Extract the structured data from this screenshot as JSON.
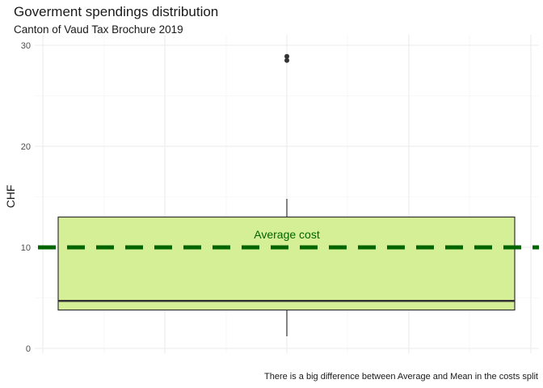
{
  "chart_data": {
    "type": "boxplot",
    "title": "Goverment spendings distribution",
    "subtitle": "Canton of Vaud Tax Brochure 2019",
    "caption": "There is a big difference between Average and Mean in the costs split",
    "xlabel": "",
    "ylabel": "CHF",
    "ylim": [
      0,
      30
    ],
    "yticks": [
      0,
      10,
      20,
      30
    ],
    "grid": true,
    "box": {
      "q1": 3.8,
      "median": 4.7,
      "q3": 13.0,
      "whisker_low": 1.2,
      "whisker_high": 14.8,
      "outliers": [
        28.5,
        28.9
      ],
      "fill": "#d4ef96",
      "stroke": "#333333"
    },
    "reference_line": {
      "value": 10,
      "label": "Average cost",
      "color": "#006400",
      "style": "dashed"
    }
  }
}
